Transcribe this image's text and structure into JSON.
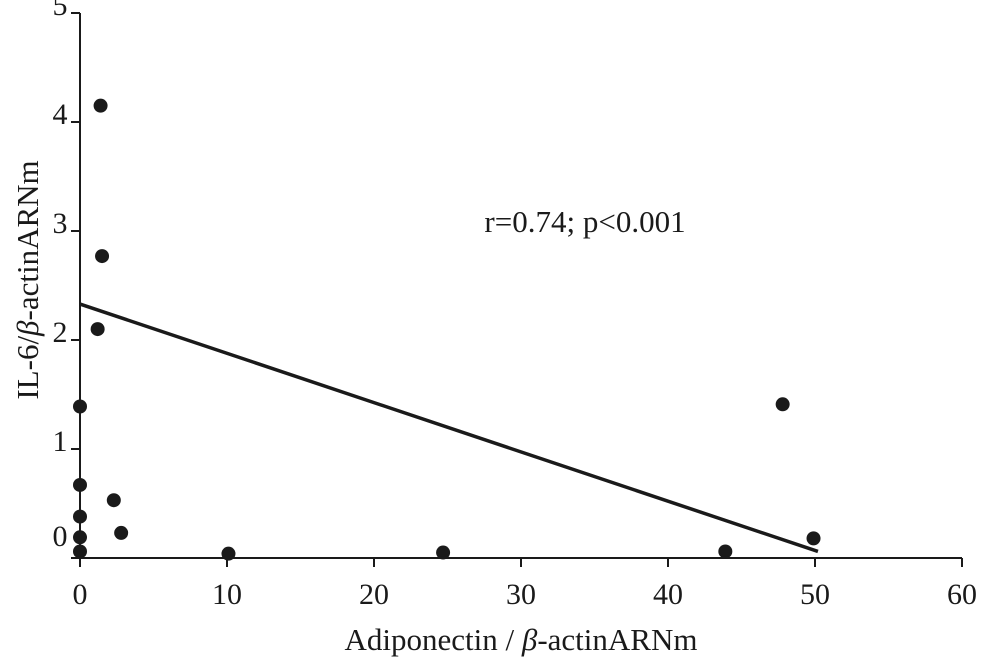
{
  "chart_data": {
    "type": "scatter",
    "xlabel": {
      "before": "Adiponectin / ",
      "symbol": "β",
      "after": "-actinARNm"
    },
    "ylabel": {
      "before": "IL-6/",
      "symbol": "β",
      "after": "-actinARNm"
    },
    "xlim": [
      0,
      60
    ],
    "ylim": [
      0,
      5
    ],
    "xticks": [
      "0",
      "10",
      "20",
      "30",
      "40",
      "50",
      "60"
    ],
    "yticks": [
      "0",
      "1",
      "2",
      "3",
      "4",
      "5"
    ],
    "annotation": "r=0.74; p<0.001",
    "grid": false,
    "legend": "none",
    "color": "#1a1a1a",
    "points": [
      {
        "x": 1.4,
        "y": 4.15
      },
      {
        "x": 1.5,
        "y": 2.77
      },
      {
        "x": 1.2,
        "y": 2.1
      },
      {
        "x": 0.0,
        "y": 1.39
      },
      {
        "x": 0.0,
        "y": 0.67
      },
      {
        "x": 0.0,
        "y": 0.38
      },
      {
        "x": 0.0,
        "y": 0.19
      },
      {
        "x": 0.0,
        "y": 0.06
      },
      {
        "x": 2.3,
        "y": 0.53
      },
      {
        "x": 2.8,
        "y": 0.23
      },
      {
        "x": 10.1,
        "y": 0.04
      },
      {
        "x": 24.7,
        "y": 0.05
      },
      {
        "x": 43.9,
        "y": 0.06
      },
      {
        "x": 47.8,
        "y": 1.41
      },
      {
        "x": 49.9,
        "y": 0.18
      }
    ],
    "fit_line": {
      "x": [
        0.0,
        50.2
      ],
      "y": [
        2.33,
        0.06
      ]
    }
  }
}
